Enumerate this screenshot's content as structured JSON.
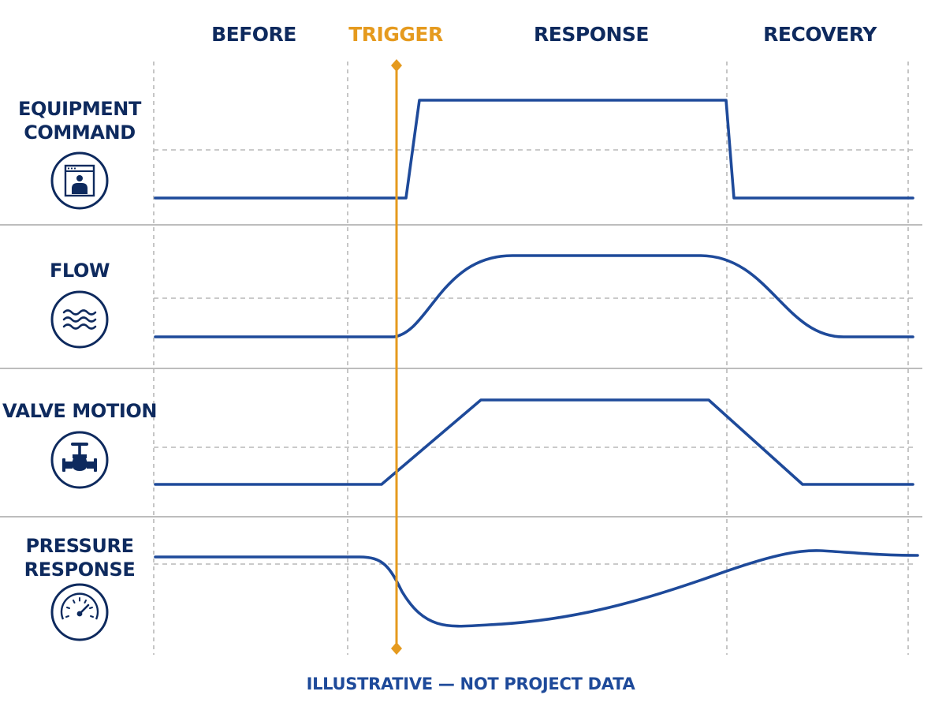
{
  "phases": {
    "before": "BEFORE",
    "trigger": "TRIGGER",
    "response": "RESPONSE",
    "recovery": "RECOVERY"
  },
  "rows": [
    {
      "line1": "EQUIPMENT",
      "line2": "COMMAND",
      "icon": "control-panel-icon"
    },
    {
      "line1": "FLOW",
      "line2": "",
      "icon": "wave-flow-icon"
    },
    {
      "line1": "VALVE MOTION",
      "line2": "",
      "icon": "valve-icon"
    },
    {
      "line1": "PRESSURE",
      "line2": "RESPONSE",
      "icon": "pressure-gauge-icon"
    }
  ],
  "caption": "ILLUSTRATIVE — NOT PROJECT DATA",
  "colors": {
    "navy": "#0e2a5e",
    "signal": "#1e4a9a",
    "trigger": "#e59a1e",
    "grid": "#b8b8b8",
    "divider": "#bdbdbd"
  }
}
